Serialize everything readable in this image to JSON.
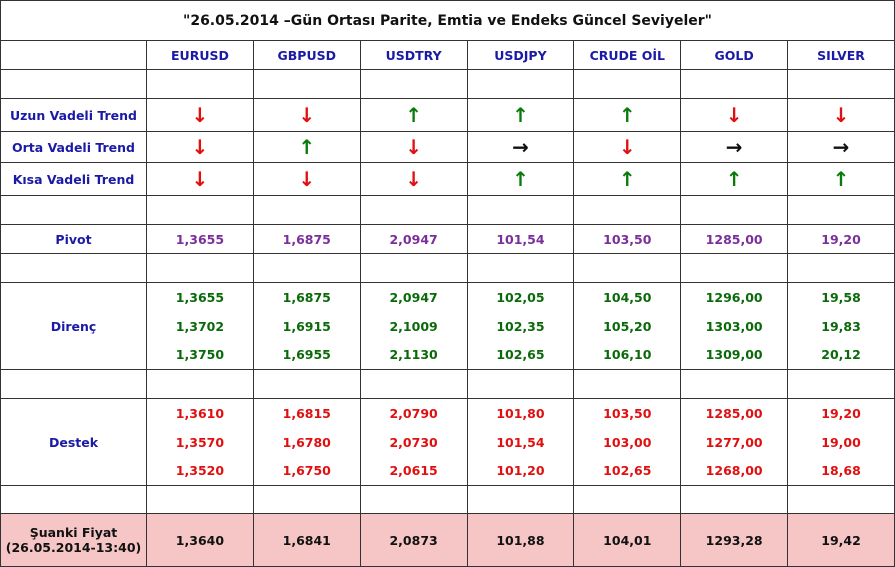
{
  "header": {
    "title": "\"26.05.2014 –Gün Ortası Parite, Emtia ve Endeks Güncel Seviyeler\""
  },
  "table": {
    "columns": [
      "EURUSD",
      "GBPUSD",
      "USDTRY",
      "USDJPY",
      "CRUDE OİL",
      "GOLD",
      "SILVER"
    ],
    "trends": [
      {
        "label": "Uzun Vadeli Trend",
        "arrows": [
          "↓",
          "↓",
          "↑",
          "↑",
          "↑",
          "↓",
          "↓"
        ]
      },
      {
        "label": "Orta Vadeli Trend",
        "arrows": [
          "↓",
          "↑",
          "↓",
          "→",
          "↓",
          "→",
          "→"
        ]
      },
      {
        "label": "Kısa Vadeli Trend",
        "arrows": [
          "↓",
          "↓",
          "↓",
          "↑",
          "↑",
          "↑",
          "↑"
        ]
      }
    ],
    "pivot": {
      "label": "Pivot",
      "values": [
        "1,3655",
        "1,6875",
        "2,0947",
        "101,54",
        "103,50",
        "1285,00",
        "19,20"
      ]
    },
    "resistance": {
      "label": "Direnç",
      "rows": [
        [
          "1,3655",
          "1,6875",
          "2,0947",
          "102,05",
          "104,50",
          "1296,00",
          "19,58"
        ],
        [
          "1,3702",
          "1,6915",
          "2,1009",
          "102,35",
          "105,20",
          "1303,00",
          "19,83"
        ],
        [
          "1,3750",
          "1,6955",
          "2,1130",
          "102,65",
          "106,10",
          "1309,00",
          "20,12"
        ]
      ]
    },
    "support": {
      "label": "Destek",
      "rows": [
        [
          "1,3610",
          "1,6815",
          "2,0790",
          "101,80",
          "103,50",
          "1285,00",
          "19,20"
        ],
        [
          "1,3570",
          "1,6780",
          "2,0730",
          "101,54",
          "103,00",
          "1277,00",
          "19,00"
        ],
        [
          "1,3520",
          "1,6750",
          "2,0615",
          "101,20",
          "102,65",
          "1268,00",
          "18,68"
        ]
      ]
    },
    "current": {
      "label": "Şuanki Fiyat (26.05.2014-13:40)",
      "values": [
        "1,3640",
        "1,6841",
        "2,0873",
        "101,88",
        "104,01",
        "1293,28",
        "19,42"
      ]
    }
  }
}
